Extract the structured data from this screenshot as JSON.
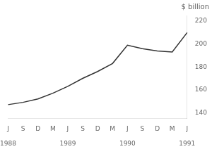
{
  "chart_data": {
    "type": "line",
    "title": "$ billion",
    "categories": [
      "J",
      "S",
      "D",
      "M",
      "J",
      "S",
      "D",
      "M",
      "J",
      "S",
      "D",
      "M",
      "J"
    ],
    "values": [
      147,
      149,
      152,
      157,
      163,
      170,
      176,
      183,
      199,
      196,
      194,
      193,
      210
    ],
    "color": "#333333",
    "ylim": [
      135,
      225
    ],
    "yticks": [
      140,
      160,
      180,
      200,
      220
    ],
    "annotations": [
      {
        "text": "1988",
        "x": 0
      },
      {
        "text": "1989",
        "x": 4
      },
      {
        "text": "1990",
        "x": 8
      },
      {
        "text": "1991",
        "x": 12
      }
    ],
    "grid": false
  }
}
